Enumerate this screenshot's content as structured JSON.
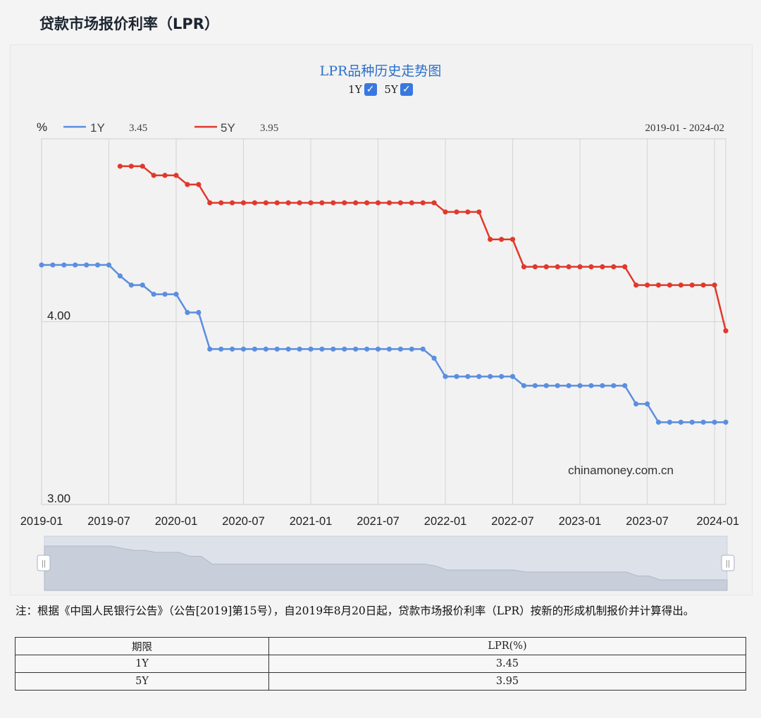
{
  "page_title": "贷款市场报价利率（LPR）",
  "chart_data": {
    "type": "line",
    "title": "LPR品种历史走势图",
    "ylabel": "%",
    "ylim": [
      3.0,
      5.0
    ],
    "y_ticks": [
      "4.00",
      "3.00"
    ],
    "x_ticks": [
      "2019-01",
      "2019-07",
      "2020-01",
      "2020-07",
      "2021-01",
      "2021-07",
      "2022-01",
      "2022-07",
      "2023-01",
      "2023-07",
      "2024-01"
    ],
    "date_range": "2019-01 - 2024-02",
    "watermark": "chinamoney.com.cn",
    "toggles": [
      {
        "label": "1Y",
        "checked": true
      },
      {
        "label": "5Y",
        "checked": true
      }
    ],
    "series": [
      {
        "name": "1Y",
        "color": "#5b8ede",
        "latest": "3.45",
        "points": [
          [
            "2019-01",
            4.31
          ],
          [
            "2019-02",
            4.31
          ],
          [
            "2019-03",
            4.31
          ],
          [
            "2019-04",
            4.31
          ],
          [
            "2019-05",
            4.31
          ],
          [
            "2019-06",
            4.31
          ],
          [
            "2019-07",
            4.31
          ],
          [
            "2019-08",
            4.25
          ],
          [
            "2019-09",
            4.2
          ],
          [
            "2019-10",
            4.2
          ],
          [
            "2019-11",
            4.15
          ],
          [
            "2019-12",
            4.15
          ],
          [
            "2020-01",
            4.15
          ],
          [
            "2020-02",
            4.05
          ],
          [
            "2020-03",
            4.05
          ],
          [
            "2020-04",
            3.85
          ],
          [
            "2020-05",
            3.85
          ],
          [
            "2020-06",
            3.85
          ],
          [
            "2020-07",
            3.85
          ],
          [
            "2020-08",
            3.85
          ],
          [
            "2020-09",
            3.85
          ],
          [
            "2020-10",
            3.85
          ],
          [
            "2020-11",
            3.85
          ],
          [
            "2020-12",
            3.85
          ],
          [
            "2021-01",
            3.85
          ],
          [
            "2021-02",
            3.85
          ],
          [
            "2021-03",
            3.85
          ],
          [
            "2021-04",
            3.85
          ],
          [
            "2021-05",
            3.85
          ],
          [
            "2021-06",
            3.85
          ],
          [
            "2021-07",
            3.85
          ],
          [
            "2021-08",
            3.85
          ],
          [
            "2021-09",
            3.85
          ],
          [
            "2021-10",
            3.85
          ],
          [
            "2021-11",
            3.85
          ],
          [
            "2021-12",
            3.8
          ],
          [
            "2022-01",
            3.7
          ],
          [
            "2022-02",
            3.7
          ],
          [
            "2022-03",
            3.7
          ],
          [
            "2022-04",
            3.7
          ],
          [
            "2022-05",
            3.7
          ],
          [
            "2022-06",
            3.7
          ],
          [
            "2022-07",
            3.7
          ],
          [
            "2022-08",
            3.65
          ],
          [
            "2022-09",
            3.65
          ],
          [
            "2022-10",
            3.65
          ],
          [
            "2022-11",
            3.65
          ],
          [
            "2022-12",
            3.65
          ],
          [
            "2023-01",
            3.65
          ],
          [
            "2023-02",
            3.65
          ],
          [
            "2023-03",
            3.65
          ],
          [
            "2023-04",
            3.65
          ],
          [
            "2023-05",
            3.65
          ],
          [
            "2023-06",
            3.55
          ],
          [
            "2023-07",
            3.55
          ],
          [
            "2023-08",
            3.45
          ],
          [
            "2023-09",
            3.45
          ],
          [
            "2023-10",
            3.45
          ],
          [
            "2023-11",
            3.45
          ],
          [
            "2023-12",
            3.45
          ],
          [
            "2024-01",
            3.45
          ],
          [
            "2024-02",
            3.45
          ]
        ]
      },
      {
        "name": "5Y",
        "color": "#e0392b",
        "latest": "3.95",
        "points": [
          [
            "2019-08",
            4.85
          ],
          [
            "2019-09",
            4.85
          ],
          [
            "2019-10",
            4.85
          ],
          [
            "2019-11",
            4.8
          ],
          [
            "2019-12",
            4.8
          ],
          [
            "2020-01",
            4.8
          ],
          [
            "2020-02",
            4.75
          ],
          [
            "2020-03",
            4.75
          ],
          [
            "2020-04",
            4.65
          ],
          [
            "2020-05",
            4.65
          ],
          [
            "2020-06",
            4.65
          ],
          [
            "2020-07",
            4.65
          ],
          [
            "2020-08",
            4.65
          ],
          [
            "2020-09",
            4.65
          ],
          [
            "2020-10",
            4.65
          ],
          [
            "2020-11",
            4.65
          ],
          [
            "2020-12",
            4.65
          ],
          [
            "2021-01",
            4.65
          ],
          [
            "2021-02",
            4.65
          ],
          [
            "2021-03",
            4.65
          ],
          [
            "2021-04",
            4.65
          ],
          [
            "2021-05",
            4.65
          ],
          [
            "2021-06",
            4.65
          ],
          [
            "2021-07",
            4.65
          ],
          [
            "2021-08",
            4.65
          ],
          [
            "2021-09",
            4.65
          ],
          [
            "2021-10",
            4.65
          ],
          [
            "2021-11",
            4.65
          ],
          [
            "2021-12",
            4.65
          ],
          [
            "2022-01",
            4.6
          ],
          [
            "2022-02",
            4.6
          ],
          [
            "2022-03",
            4.6
          ],
          [
            "2022-04",
            4.6
          ],
          [
            "2022-05",
            4.45
          ],
          [
            "2022-06",
            4.45
          ],
          [
            "2022-07",
            4.45
          ],
          [
            "2022-08",
            4.3
          ],
          [
            "2022-09",
            4.3
          ],
          [
            "2022-10",
            4.3
          ],
          [
            "2022-11",
            4.3
          ],
          [
            "2022-12",
            4.3
          ],
          [
            "2023-01",
            4.3
          ],
          [
            "2023-02",
            4.3
          ],
          [
            "2023-03",
            4.3
          ],
          [
            "2023-04",
            4.3
          ],
          [
            "2023-05",
            4.3
          ],
          [
            "2023-06",
            4.2
          ],
          [
            "2023-07",
            4.2
          ],
          [
            "2023-08",
            4.2
          ],
          [
            "2023-09",
            4.2
          ],
          [
            "2023-10",
            4.2
          ],
          [
            "2023-11",
            4.2
          ],
          [
            "2023-12",
            4.2
          ],
          [
            "2024-01",
            4.2
          ],
          [
            "2024-02",
            3.95
          ]
        ]
      }
    ]
  },
  "note": "注：根据《中国人民银行公告》（公告[2019]第15号），自2019年8月20日起，贷款市场报价利率（LPR）按新的形成机制报价并计算得出。",
  "table": {
    "headers": [
      "期限",
      "LPR(%)"
    ],
    "rows": [
      [
        "1Y",
        "3.45"
      ],
      [
        "5Y",
        "3.95"
      ]
    ]
  },
  "colors": {
    "title": "#2b6fcb",
    "series_1y": "#5b8ede",
    "series_5y": "#e0392b",
    "checkbox": "#3a78e0"
  }
}
